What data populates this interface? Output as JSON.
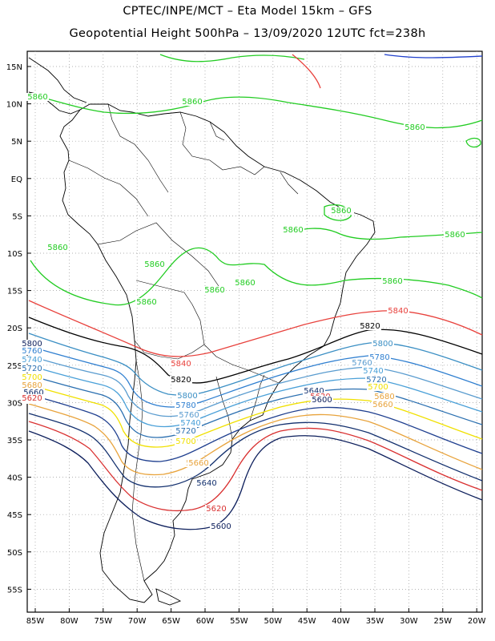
{
  "title_line1": "CPTEC/INPE/MCT –  Eta Model 15km – GFS",
  "title_line2": "Geopotential Height 500hPa – 13/09/2020 12UTC fct=238h",
  "lat_labels": [
    "15N",
    "10N",
    "5N",
    "EQ",
    "5S",
    "10S",
    "15S",
    "20S",
    "25S",
    "30S",
    "35S",
    "40S",
    "45S",
    "50S",
    "55S"
  ],
  "lon_labels": [
    "85W",
    "80W",
    "75W",
    "70W",
    "65W",
    "60W",
    "55W",
    "50W",
    "45W",
    "40W",
    "35W",
    "30W",
    "25W",
    "20W"
  ],
  "colors": {
    "c5860": "#22cc22",
    "c5840": "#e8413c",
    "c5820": "#000000",
    "c5800": "#3b8fc4",
    "c5780": "#2f7fd0",
    "c5760": "#5a9ccf",
    "c5740": "#4aa0d8",
    "c5720": "#2a6fb0",
    "c5700": "#f0e000",
    "c5680": "#e8a33c",
    "c5660": "#1f3f8f",
    "c5640": "#13306e",
    "c5620": "#d93030",
    "c5600": "#0d1f5c",
    "land": "#000000",
    "grid": "#999999"
  },
  "contour_labels": [
    {
      "text": "5860",
      "color": "c5860"
    },
    {
      "text": "5860",
      "color": "c5860"
    },
    {
      "text": "5860",
      "color": "c5860"
    },
    {
      "text": "5860",
      "color": "c5860"
    },
    {
      "text": "5860",
      "color": "c5860"
    },
    {
      "text": "5860",
      "color": "c5860"
    },
    {
      "text": "5860",
      "color": "c5860"
    },
    {
      "text": "5860",
      "color": "c5860"
    },
    {
      "text": "5860",
      "color": "c5860"
    },
    {
      "text": "5860",
      "color": "c5860"
    },
    {
      "text": "5860",
      "color": "c5860"
    },
    {
      "text": "5860",
      "color": "c5860"
    },
    {
      "text": "5860",
      "color": "c5860"
    },
    {
      "text": "5840",
      "color": "c5840"
    },
    {
      "text": "5840",
      "color": "c5840"
    },
    {
      "text": "5820",
      "color": "c5820"
    },
    {
      "text": "5820",
      "color": "c5820"
    },
    {
      "text": "5800",
      "color": "c5800"
    },
    {
      "text": "5800",
      "color": "c5800"
    },
    {
      "text": "5780",
      "color": "c5780"
    },
    {
      "text": "5780",
      "color": "c5780"
    },
    {
      "text": "5760",
      "color": "c5760"
    },
    {
      "text": "5760",
      "color": "c5760"
    },
    {
      "text": "5740",
      "color": "c5740"
    },
    {
      "text": "5740",
      "color": "c5740"
    },
    {
      "text": "5720",
      "color": "c5720"
    },
    {
      "text": "5720",
      "color": "c5720"
    },
    {
      "text": "5700",
      "color": "c5700"
    },
    {
      "text": "5700",
      "color": "c5700"
    },
    {
      "text": "5680",
      "color": "c5680"
    },
    {
      "text": "5680",
      "color": "c5680"
    },
    {
      "text": "5660",
      "color": "c5680"
    },
    {
      "text": "5660",
      "color": "c5680"
    },
    {
      "text": "5640",
      "color": "c5640"
    },
    {
      "text": "5640",
      "color": "c5640"
    },
    {
      "text": "5620",
      "color": "c5620"
    },
    {
      "text": "5620",
      "color": "c5620"
    },
    {
      "text": "5600",
      "color": "c5600"
    },
    {
      "text": "5600",
      "color": "c5600"
    },
    {
      "text": "5800",
      "color": "c5600"
    },
    {
      "text": "5760",
      "color": "c5780"
    },
    {
      "text": "5740",
      "color": "c5740"
    },
    {
      "text": "5720",
      "color": "c5720"
    },
    {
      "text": "5700",
      "color": "c5700"
    },
    {
      "text": "5680",
      "color": "c5680"
    },
    {
      "text": "5660",
      "color": "c5640"
    },
    {
      "text": "5640",
      "color": "c5640"
    },
    {
      "text": "5620",
      "color": "c5620"
    }
  ]
}
